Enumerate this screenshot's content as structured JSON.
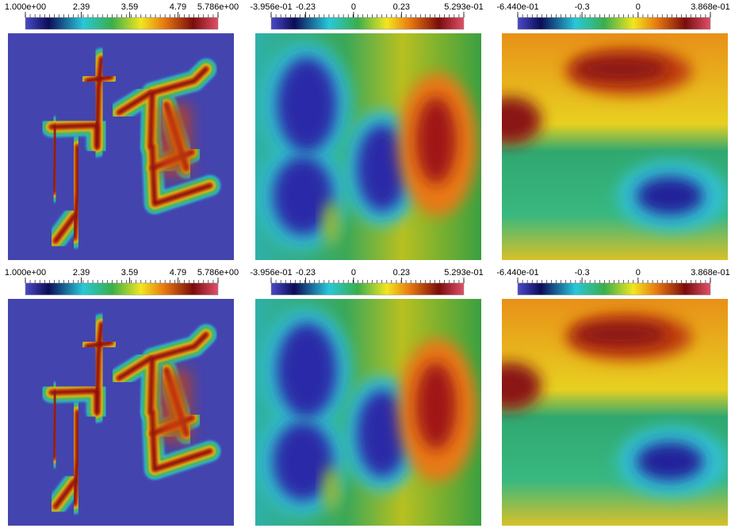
{
  "panels": [
    {
      "colorbar": {
        "min": {
          "value": 1,
          "label": "1.000e+00"
        },
        "max": {
          "value": 5.786,
          "label": "5.786e+00"
        },
        "ticks": [
          2.39,
          3.59,
          4.79
        ]
      }
    },
    {
      "colorbar": {
        "min": {
          "value": -0.3956,
          "label": "-3.956e-01"
        },
        "max": {
          "value": 0.5293,
          "label": "5.293e-01"
        },
        "ticks": [
          -0.23,
          0,
          0.23
        ]
      }
    },
    {
      "colorbar": {
        "min": {
          "value": -0.644,
          "label": "-6.440e-01"
        },
        "max": {
          "value": 0.3868,
          "label": "3.868e-01"
        },
        "ticks": [
          -0.3,
          0
        ]
      }
    },
    {
      "colorbar": {
        "min": {
          "value": 1,
          "label": "1.000e+00"
        },
        "max": {
          "value": 5.786,
          "label": "5.786e+00"
        },
        "ticks": [
          2.39,
          3.59,
          4.79
        ]
      }
    },
    {
      "colorbar": {
        "min": {
          "value": -0.3956,
          "label": "-3.956e-01"
        },
        "max": {
          "value": 0.5293,
          "label": "5.293e-01"
        },
        "ticks": [
          -0.23,
          0,
          0.23
        ]
      }
    },
    {
      "colorbar": {
        "min": {
          "value": -0.644,
          "label": "-6.440e-01"
        },
        "max": {
          "value": 0.3868,
          "label": "3.868e-01"
        },
        "ticks": [
          -0.3,
          0
        ]
      }
    }
  ]
}
